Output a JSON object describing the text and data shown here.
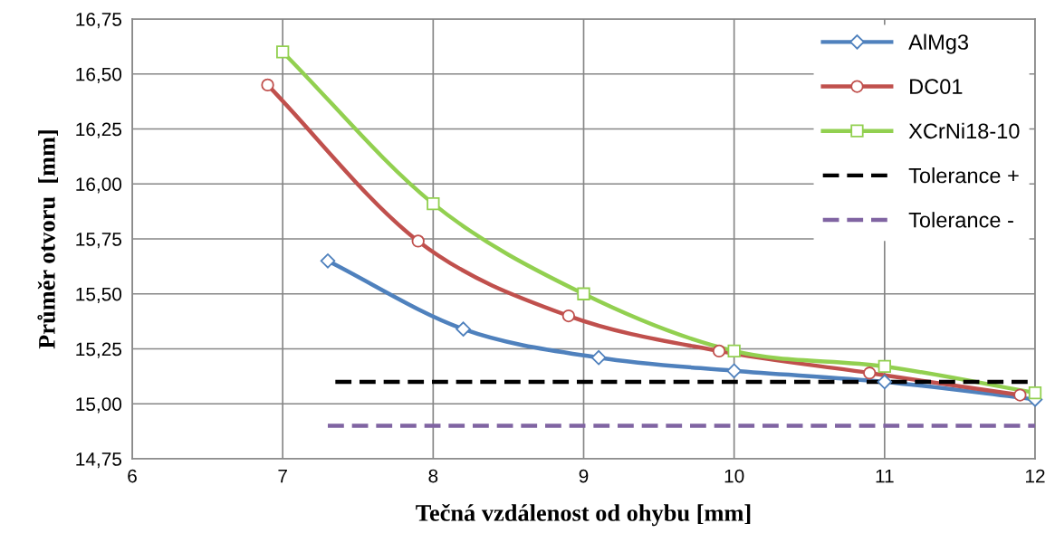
{
  "chart_data": {
    "type": "line",
    "xlabel": "Tečná vzdálenost od ohybu [mm]",
    "ylabel": "Průměr otvoru  [mm]",
    "xlim": [
      6,
      12
    ],
    "xticks": [
      6,
      7,
      8,
      9,
      10,
      11,
      12
    ],
    "ylim": [
      14.75,
      16.75
    ],
    "yticks": [
      {
        "value": 14.75,
        "label": "14,75"
      },
      {
        "value": 15.0,
        "label": "15,00"
      },
      {
        "value": 15.25,
        "label": "15,25"
      },
      {
        "value": 15.5,
        "label": "15,50"
      },
      {
        "value": 15.75,
        "label": "15,75"
      },
      {
        "value": 16.0,
        "label": "16,00"
      },
      {
        "value": 16.25,
        "label": "16,25"
      },
      {
        "value": 16.5,
        "label": "16,50"
      },
      {
        "value": 16.75,
        "label": "16,75"
      }
    ],
    "grid": true,
    "legend": "top right",
    "series": [
      {
        "name": "AlMg3",
        "color": "#4f81bd",
        "marker": "diamond",
        "line_style": "solid",
        "x": [
          7.3,
          8.2,
          9.1,
          10,
          11,
          12
        ],
        "values": [
          15.65,
          15.34,
          15.21,
          15.15,
          15.1,
          15.02
        ]
      },
      {
        "name": "DC01",
        "color": "#c0504d",
        "marker": "circle",
        "line_style": "solid",
        "x": [
          6.9,
          7.9,
          8.9,
          9.9,
          10.9,
          11.9
        ],
        "values": [
          16.45,
          15.74,
          15.4,
          15.24,
          15.14,
          15.04
        ]
      },
      {
        "name": "XCrNi18-10",
        "color": "#92d050",
        "marker": "square",
        "line_style": "solid",
        "x": [
          7,
          8,
          9,
          10,
          11,
          12
        ],
        "values": [
          16.6,
          15.91,
          15.5,
          15.24,
          15.17,
          15.05
        ]
      },
      {
        "name": "Tolerance +",
        "color": "#000000",
        "marker": "none",
        "line_style": "dashed",
        "x": [
          7.35,
          12
        ],
        "values": [
          15.1,
          15.1
        ]
      },
      {
        "name": "Tolerance -",
        "color": "#8064a2",
        "marker": "none",
        "line_style": "dashed",
        "x": [
          7.3,
          12
        ],
        "values": [
          14.9,
          14.9
        ]
      }
    ]
  }
}
